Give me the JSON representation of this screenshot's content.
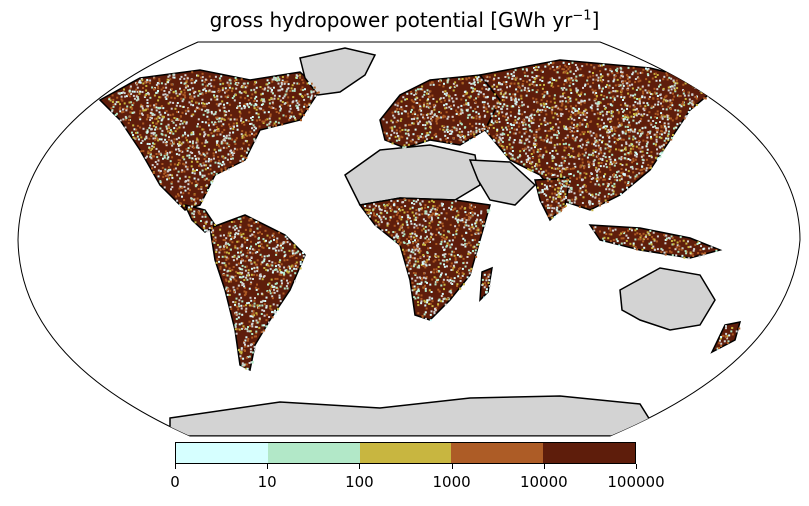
{
  "title": {
    "text": "gross hydropower potential [GWh yr",
    "sup": "−1",
    "close": "]"
  },
  "colorbar": {
    "colors": [
      "#d6ffff",
      "#b2e8c8",
      "#c8b640",
      "#ad5c26",
      "#5e1d0b"
    ],
    "tick_labels": [
      "0",
      "10",
      "100",
      "1000",
      "10000",
      "100000"
    ]
  },
  "map": {
    "projection": "Robinson",
    "land_color": "#d3d3d3",
    "ocean_color": "#ffffff",
    "coastline_color": "#000000"
  }
}
